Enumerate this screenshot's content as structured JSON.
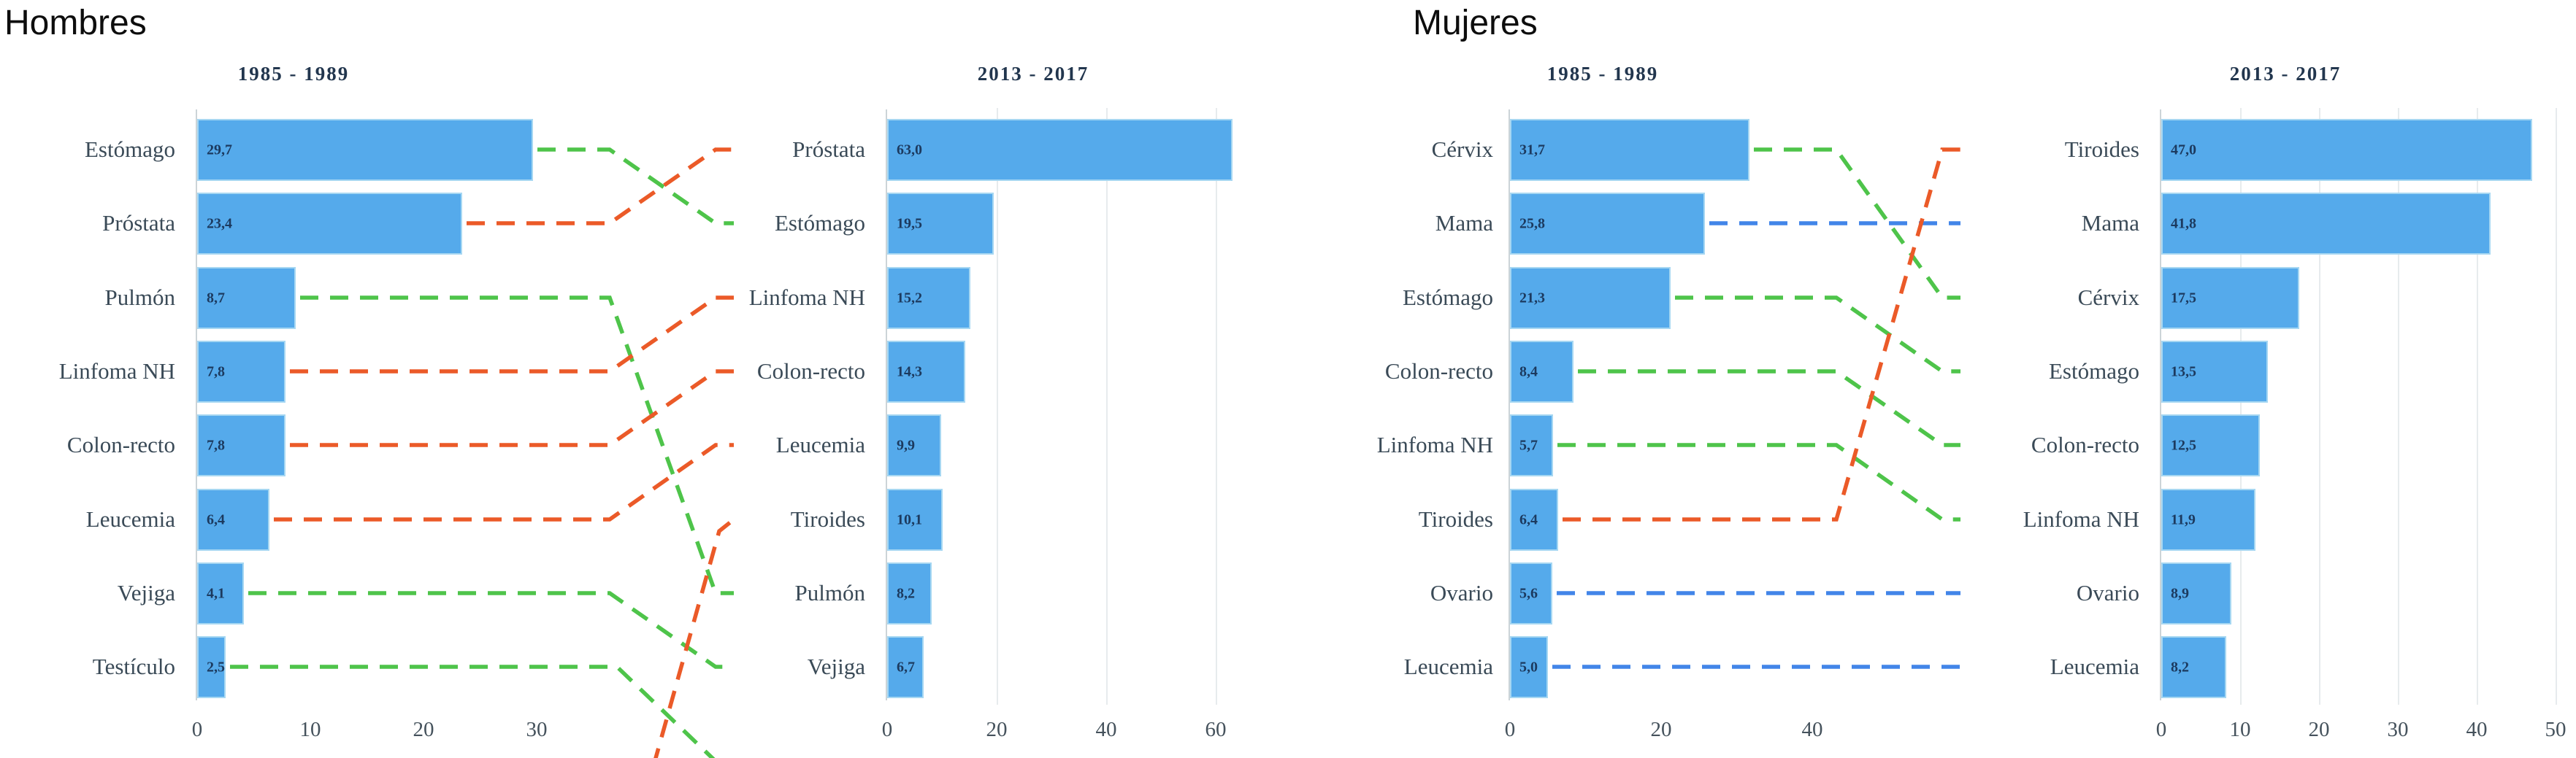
{
  "headers": {
    "left": "Hombres",
    "right": "Mujeres"
  },
  "colors": {
    "bar": "#55aaeb",
    "bar_border": "#a6d7f2",
    "rank_up": "#eb5a28",
    "rank_down": "#4ec44a",
    "rank_same": "#4285e8",
    "category_text": "#3a4a57",
    "value_text": "#1c3a5f",
    "title_text": "#22364e",
    "tick_text": "#45525c"
  },
  "chart_data": [
    {
      "id": "hombres-1985-1989",
      "type": "bar",
      "orientation": "horizontal",
      "section": "Hombres",
      "title": "1985 - 1989",
      "categories": [
        "Estómago",
        "Próstata",
        "Pulmón",
        "Linfoma NH",
        "Colon-recto",
        "Leucemia",
        "Vejiga",
        "Testículo"
      ],
      "values": [
        29.7,
        23.4,
        8.7,
        7.8,
        7.8,
        6.4,
        4.1,
        2.5
      ],
      "value_labels": [
        "29,7",
        "23,4",
        "8,7",
        "7,8",
        "7,8",
        "6,4",
        "4,1",
        "2,5"
      ],
      "xticks": [
        0,
        10,
        20,
        30
      ],
      "xlim": [
        0,
        32
      ],
      "grid": false
    },
    {
      "id": "hombres-2013-2017",
      "type": "bar",
      "orientation": "horizontal",
      "section": "Hombres",
      "title": "2013 - 2017",
      "categories": [
        "Próstata",
        "Estómago",
        "Linfoma NH",
        "Colon-recto",
        "Leucemia",
        "Tiroides",
        "Pulmón",
        "Vejiga"
      ],
      "values": [
        63.0,
        19.5,
        15.2,
        14.3,
        9.9,
        10.1,
        8.2,
        6.7
      ],
      "value_labels": [
        "63,0",
        "19,5",
        "15,2",
        "14,3",
        "9,9",
        "10,1",
        "8,2",
        "6,7"
      ],
      "xticks": [
        0,
        20,
        40,
        60
      ],
      "xlim": [
        0,
        66
      ],
      "grid": true
    },
    {
      "id": "mujeres-1985-1989",
      "type": "bar",
      "orientation": "horizontal",
      "section": "Mujeres",
      "title": "1985 - 1989",
      "categories": [
        "Cérvix",
        "Mama",
        "Estómago",
        "Colon-recto",
        "Linfoma NH",
        "Tiroides",
        "Ovario",
        "Leucemia"
      ],
      "values": [
        31.7,
        25.8,
        21.3,
        8.4,
        5.7,
        6.4,
        5.6,
        5.0
      ],
      "value_labels": [
        "31,7",
        "25,8",
        "21,3",
        "8,4",
        "5,7",
        "6,4",
        "5,6",
        "5,0"
      ],
      "xticks": [
        0,
        20,
        40
      ],
      "xlim": [
        0,
        42
      ],
      "grid": false
    },
    {
      "id": "mujeres-2013-2017",
      "type": "bar",
      "orientation": "horizontal",
      "section": "Mujeres",
      "title": "2013 - 2017",
      "categories": [
        "Tiroides",
        "Mama",
        "Cérvix",
        "Estómago",
        "Colon-recto",
        "Linfoma NH",
        "Ovario",
        "Leucemia"
      ],
      "values": [
        47.0,
        41.8,
        17.5,
        13.5,
        12.5,
        11.9,
        8.9,
        8.2
      ],
      "value_labels": [
        "47,0",
        "41,8",
        "17,5",
        "13,5",
        "12,5",
        "11,9",
        "8,9",
        "8,2"
      ],
      "xticks": [
        0,
        10,
        20,
        30,
        40,
        50
      ],
      "xlim": [
        0,
        50
      ],
      "grid": true
    }
  ],
  "rank_transitions": {
    "hombres": [
      {
        "label": "Estómago",
        "from_rank": 1,
        "to_rank": 2,
        "status": "rank_down"
      },
      {
        "label": "Próstata",
        "from_rank": 2,
        "to_rank": 1,
        "status": "rank_up"
      },
      {
        "label": "Pulmón",
        "from_rank": 3,
        "to_rank": 7,
        "status": "rank_down"
      },
      {
        "label": "Linfoma NH",
        "from_rank": 4,
        "to_rank": 3,
        "status": "rank_up"
      },
      {
        "label": "Colon-recto",
        "from_rank": 5,
        "to_rank": 4,
        "status": "rank_up"
      },
      {
        "label": "Leucemia",
        "from_rank": 6,
        "to_rank": 5,
        "status": "rank_up"
      },
      {
        "label": "Vejiga",
        "from_rank": 7,
        "to_rank": 8,
        "status": "rank_down"
      },
      {
        "label": "Testículo",
        "from_rank": 8,
        "to_rank": null,
        "status": "rank_down"
      },
      {
        "label": "Tiroides",
        "from_rank": null,
        "to_rank": 6,
        "status": "rank_up"
      }
    ],
    "mujeres": [
      {
        "label": "Cérvix",
        "from_rank": 1,
        "to_rank": 3,
        "status": "rank_down"
      },
      {
        "label": "Mama",
        "from_rank": 2,
        "to_rank": 2,
        "status": "rank_same"
      },
      {
        "label": "Estómago",
        "from_rank": 3,
        "to_rank": 4,
        "status": "rank_down"
      },
      {
        "label": "Colon-recto",
        "from_rank": 4,
        "to_rank": 5,
        "status": "rank_down"
      },
      {
        "label": "Linfoma NH",
        "from_rank": 5,
        "to_rank": 6,
        "status": "rank_down"
      },
      {
        "label": "Tiroides",
        "from_rank": 6,
        "to_rank": 1,
        "status": "rank_up"
      },
      {
        "label": "Ovario",
        "from_rank": 7,
        "to_rank": 7,
        "status": "rank_same"
      },
      {
        "label": "Leucemia",
        "from_rank": 8,
        "to_rank": 8,
        "status": "rank_same"
      }
    ]
  }
}
